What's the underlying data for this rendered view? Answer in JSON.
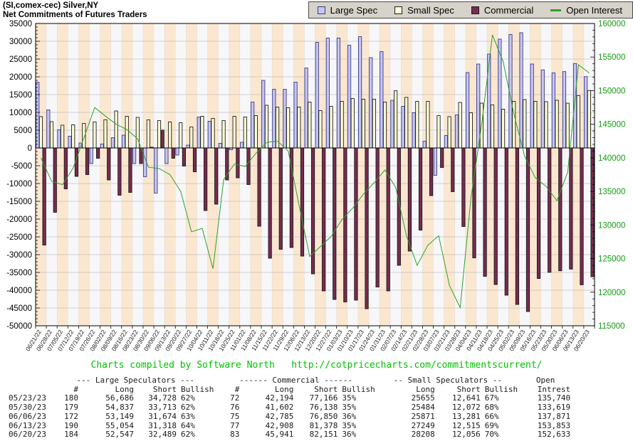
{
  "title": {
    "line1": "(SI,comex-cec) Silver,NY",
    "line2": "Net Commitments of Futures Traders"
  },
  "legend": {
    "items": [
      {
        "label": "Large Spec",
        "type": "box",
        "color": "#c6c6f2",
        "border": "#3c3c86"
      },
      {
        "label": "Small Spec",
        "type": "box",
        "color": "#ffffd4",
        "border": "#1a1a1a"
      },
      {
        "label": "Commercial",
        "type": "box",
        "color": "#792b50",
        "border": "#1a1a1a"
      },
      {
        "label": "Open Interest",
        "type": "line",
        "color": "#2da12d",
        "border": "#2da12d"
      }
    ]
  },
  "chart_data": {
    "type": "bar",
    "title": "Net Commitments of Futures Traders",
    "left_axis": {
      "min": -50000,
      "max": 35000,
      "step": 5000,
      "minor_step": 1000,
      "color": "#000000"
    },
    "right_axis": {
      "min": 115000,
      "max": 160000,
      "step": 5000,
      "minor_step": 1000,
      "color": "#0f9b0f"
    },
    "grid": true,
    "stripe_colors": {
      "even": "#fbe7cf",
      "odd": "#f7f7f9"
    },
    "categories": [
      "06/21/22",
      "06/28/22",
      "07/05/22",
      "07/12/22",
      "07/19/22",
      "07/26/22",
      "08/02/22",
      "08/09/22",
      "08/16/22",
      "08/23/22",
      "08/30/22",
      "09/06/22",
      "09/13/22",
      "09/20/22",
      "09/27/22",
      "10/04/22",
      "10/11/22",
      "10/18/22",
      "10/25/22",
      "11/01/22",
      "11/08/22",
      "11/15/22",
      "11/22/22",
      "11/29/22",
      "12/06/22",
      "12/13/22",
      "12/20/22",
      "12/27/22",
      "01/03/23",
      "01/10/23",
      "01/17/23",
      "01/24/23",
      "01/31/23",
      "02/07/23",
      "02/14/23",
      "02/21/23",
      "02/28/23",
      "03/07/23",
      "03/21/23",
      "03/28/23",
      "04/04/23",
      "04/11/23",
      "04/18/23",
      "04/25/23",
      "05/02/23",
      "05/09/23",
      "05/16/23",
      "05/23/23",
      "05/30/23",
      "06/06/23",
      "06/13/23",
      "06/20/23"
    ],
    "series": [
      {
        "name": "Large Spec",
        "type": "bar",
        "axis": "left",
        "color": "#c6c6f2",
        "border": "#3c3c86",
        "values": [
          18500,
          10700,
          5100,
          3300,
          1400,
          -4400,
          1100,
          2900,
          3600,
          -4400,
          -8100,
          -12700,
          -4400,
          -2000,
          800,
          8700,
          7500,
          1300,
          -500,
          1600,
          12900,
          19000,
          16500,
          16500,
          18500,
          22500,
          29700,
          30900,
          30900,
          28900,
          31300,
          25400,
          27100,
          13400,
          11700,
          9900,
          1900,
          -7700,
          3500,
          9300,
          21200,
          23600,
          26400,
          30600,
          31900,
          32400,
          23600,
          21958,
          21124,
          21475,
          23736,
          20058
        ]
      },
      {
        "name": "Small Spec",
        "type": "bar",
        "axis": "left",
        "color": "#ffffd4",
        "border": "#1a1a1a",
        "values": [
          8800,
          7400,
          6400,
          6500,
          6900,
          7300,
          7900,
          10400,
          8900,
          8600,
          7900,
          7700,
          7300,
          7100,
          5900,
          8900,
          8300,
          7700,
          8900,
          8700,
          9100,
          12000,
          11500,
          11300,
          11500,
          12900,
          10500,
          11700,
          13100,
          13900,
          13700,
          13700,
          12900,
          16100,
          14200,
          13100,
          13100,
          9100,
          8800,
          12800,
          9900,
          12600,
          12100,
          10900,
          13100,
          13600,
          13100,
          13014,
          13412,
          12590,
          14734,
          16152
        ]
      },
      {
        "name": "Commercial",
        "type": "bar",
        "axis": "left",
        "color": "#792b50",
        "border": "#1a1a1a",
        "values": [
          -27300,
          -18100,
          -11500,
          -8000,
          -7500,
          -2900,
          -9000,
          -13300,
          -12500,
          -4400,
          200,
          5000,
          -2900,
          -5100,
          -6700,
          -17600,
          -15800,
          -9000,
          -8400,
          -10300,
          -22000,
          -31000,
          -28500,
          -28000,
          -30400,
          -35400,
          -40200,
          -42600,
          -43300,
          -42800,
          -45200,
          -39100,
          -40200,
          -33000,
          -29000,
          -23100,
          -13400,
          -5500,
          -12300,
          -22100,
          -30900,
          -36100,
          -38400,
          -41400,
          -44000,
          -46000,
          -36700,
          -34972,
          -34536,
          -34065,
          -38470,
          -36210
        ]
      },
      {
        "name": "Open Interest",
        "type": "line",
        "axis": "right",
        "color": "#2da12d",
        "border": "#2da12d",
        "values": [
          140000,
          136500,
          136000,
          138500,
          143000,
          147500,
          146200,
          145000,
          144200,
          142800,
          138600,
          138400,
          137500,
          135000,
          129000,
          129500,
          123500,
          136800,
          139100,
          138700,
          140700,
          142300,
          142500,
          141000,
          133000,
          125300,
          126800,
          128300,
          130800,
          132500,
          134600,
          136300,
          138200,
          135600,
          128400,
          124000,
          127000,
          128400,
          121000,
          117700,
          134000,
          145000,
          158300,
          154300,
          146500,
          140200,
          137000,
          135740,
          133619,
          137871,
          153853,
          152633
        ]
      }
    ]
  },
  "footer": {
    "text": "Charts compiled by Software North",
    "url": "http://cotpricecharts.com/commitmentscurrent/"
  },
  "table": {
    "group_headers": [
      {
        "label": "",
        "span": 1
      },
      {
        "label": "--- Large Speculators ---",
        "span": 4
      },
      {
        "label": "------ Commercial ------",
        "span": 4
      },
      {
        "label": "-- Small Speculators --",
        "span": 3
      },
      {
        "label": "Open",
        "span": 1
      }
    ],
    "col_headers": [
      "",
      "#",
      "Long",
      "Short",
      "Bullish",
      "#",
      "Long",
      "Short",
      "Bullish",
      "Long",
      "Short",
      "Bullish",
      "Intrest"
    ],
    "rows": [
      [
        "05/23/23",
        "180",
        "56,686",
        "34,728",
        "62%",
        "72",
        "42,194",
        "77,166",
        "35%",
        "25655",
        "12,641",
        "67%",
        "135,740"
      ],
      [
        "05/30/23",
        "179",
        "54,837",
        "33,713",
        "62%",
        "76",
        "41,602",
        "76,138",
        "35%",
        "25484",
        "12,072",
        "68%",
        "133,619"
      ],
      [
        "06/06/23",
        "172",
        "53,149",
        "31,674",
        "63%",
        "75",
        "42,785",
        "76,850",
        "36%",
        "25871",
        "13,281",
        "66%",
        "137,871"
      ],
      [
        "06/13/23",
        "190",
        "55,054",
        "31,318",
        "64%",
        "77",
        "42,908",
        "81,378",
        "35%",
        "27249",
        "12,515",
        "69%",
        "153,853"
      ],
      [
        "06/20/23",
        "184",
        "52,547",
        "32,489",
        "62%",
        "83",
        "45,941",
        "82,151",
        "36%",
        "28208",
        "12,056",
        "70%",
        "152,633"
      ]
    ]
  }
}
